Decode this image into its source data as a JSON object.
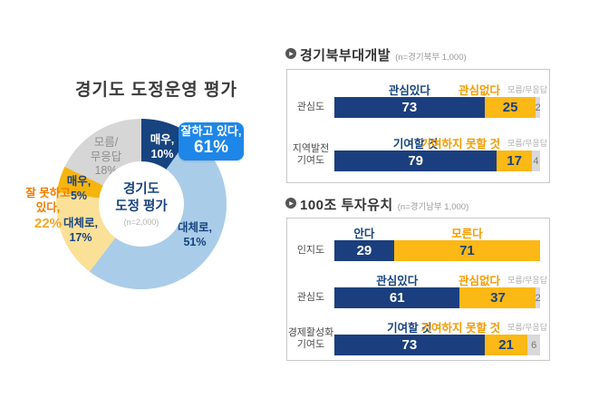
{
  "left_panel": {
    "title": "경기도 도정운영 평가",
    "center_title": "경기도\n도정 평가",
    "center_n": "(n=2,000)",
    "positive_callout": {
      "label": "잘하고 있다,",
      "value": "61%"
    },
    "negative_callout": {
      "label": "잘 못하고\n있다,",
      "value": "22%"
    }
  },
  "colors": {
    "navy": "#17437f",
    "bar_navy": "#1b3f7e",
    "light_blue": "#a9cce9",
    "callout_blue": "#1d86e8",
    "light_yellow": "#fbe098",
    "gold": "#f6b40f",
    "bar_yellow": "#fcb814",
    "gray": "#d6d6d6",
    "orange_header": "#f59b00",
    "orange_callout": "#ee7d00"
  },
  "chart_data": [
    {
      "type": "pie",
      "title": "경기도 도정운영 평가",
      "n": "n=2,000",
      "groups": [
        {
          "label": "잘하고 있다",
          "value": 61
        },
        {
          "label": "잘 못하고 있다",
          "value": 22
        },
        {
          "label": "모름/무응답",
          "value": 18
        }
      ],
      "slices": [
        {
          "name": "매우 잘하고 있다",
          "label": "매우,\n10%",
          "value": 10,
          "color": "#17437f"
        },
        {
          "name": "대체로 잘하고 있다",
          "label": "대체로,\n51%",
          "value": 51,
          "color": "#a9cce9"
        },
        {
          "name": "대체로 잘 못하고 있다",
          "label": "대체로,\n17%",
          "value": 17,
          "color": "#fbe098"
        },
        {
          "name": "매우 잘 못하고 있다",
          "label": "매우,\n5%",
          "value": 5,
          "color": "#f6b40f"
        },
        {
          "name": "모름/무응답",
          "label": "모름/\n무응답\n18%",
          "value": 18,
          "color": "#d6d6d6"
        }
      ]
    },
    {
      "type": "bar",
      "title": "경기북부대개발",
      "n": "(n=경기북부 1,000)",
      "rows": [
        {
          "label": "관심도",
          "pos_label": "관심있다",
          "neg_label": "관심없다",
          "dk_label": "모름/무응답",
          "pos": 73,
          "neg": 25,
          "dk": 2
        },
        {
          "label": "지역발전\n기여도",
          "pos_label": "기여할 것",
          "neg_label": "기여하지 못할 것",
          "dk_label": "모름/무응답",
          "pos": 79,
          "neg": 17,
          "dk": 4
        }
      ]
    },
    {
      "type": "bar",
      "title": "100조 투자유치",
      "n": "(n=경기남부 1,000)",
      "rows": [
        {
          "label": "인지도",
          "pos_label": "안다",
          "neg_label": "모른다",
          "pos": 29,
          "neg": 71
        },
        {
          "label": "관심도",
          "pos_label": "관심있다",
          "neg_label": "관심없다",
          "dk_label": "모름/무응답",
          "pos": 61,
          "neg": 37,
          "dk": 2
        },
        {
          "label": "경제활성화\n기여도",
          "pos_label": "기여할 것",
          "neg_label": "기여하지 못할 것",
          "dk_label": "모름/무응답",
          "pos": 73,
          "neg": 21,
          "dk": 6
        }
      ]
    }
  ]
}
